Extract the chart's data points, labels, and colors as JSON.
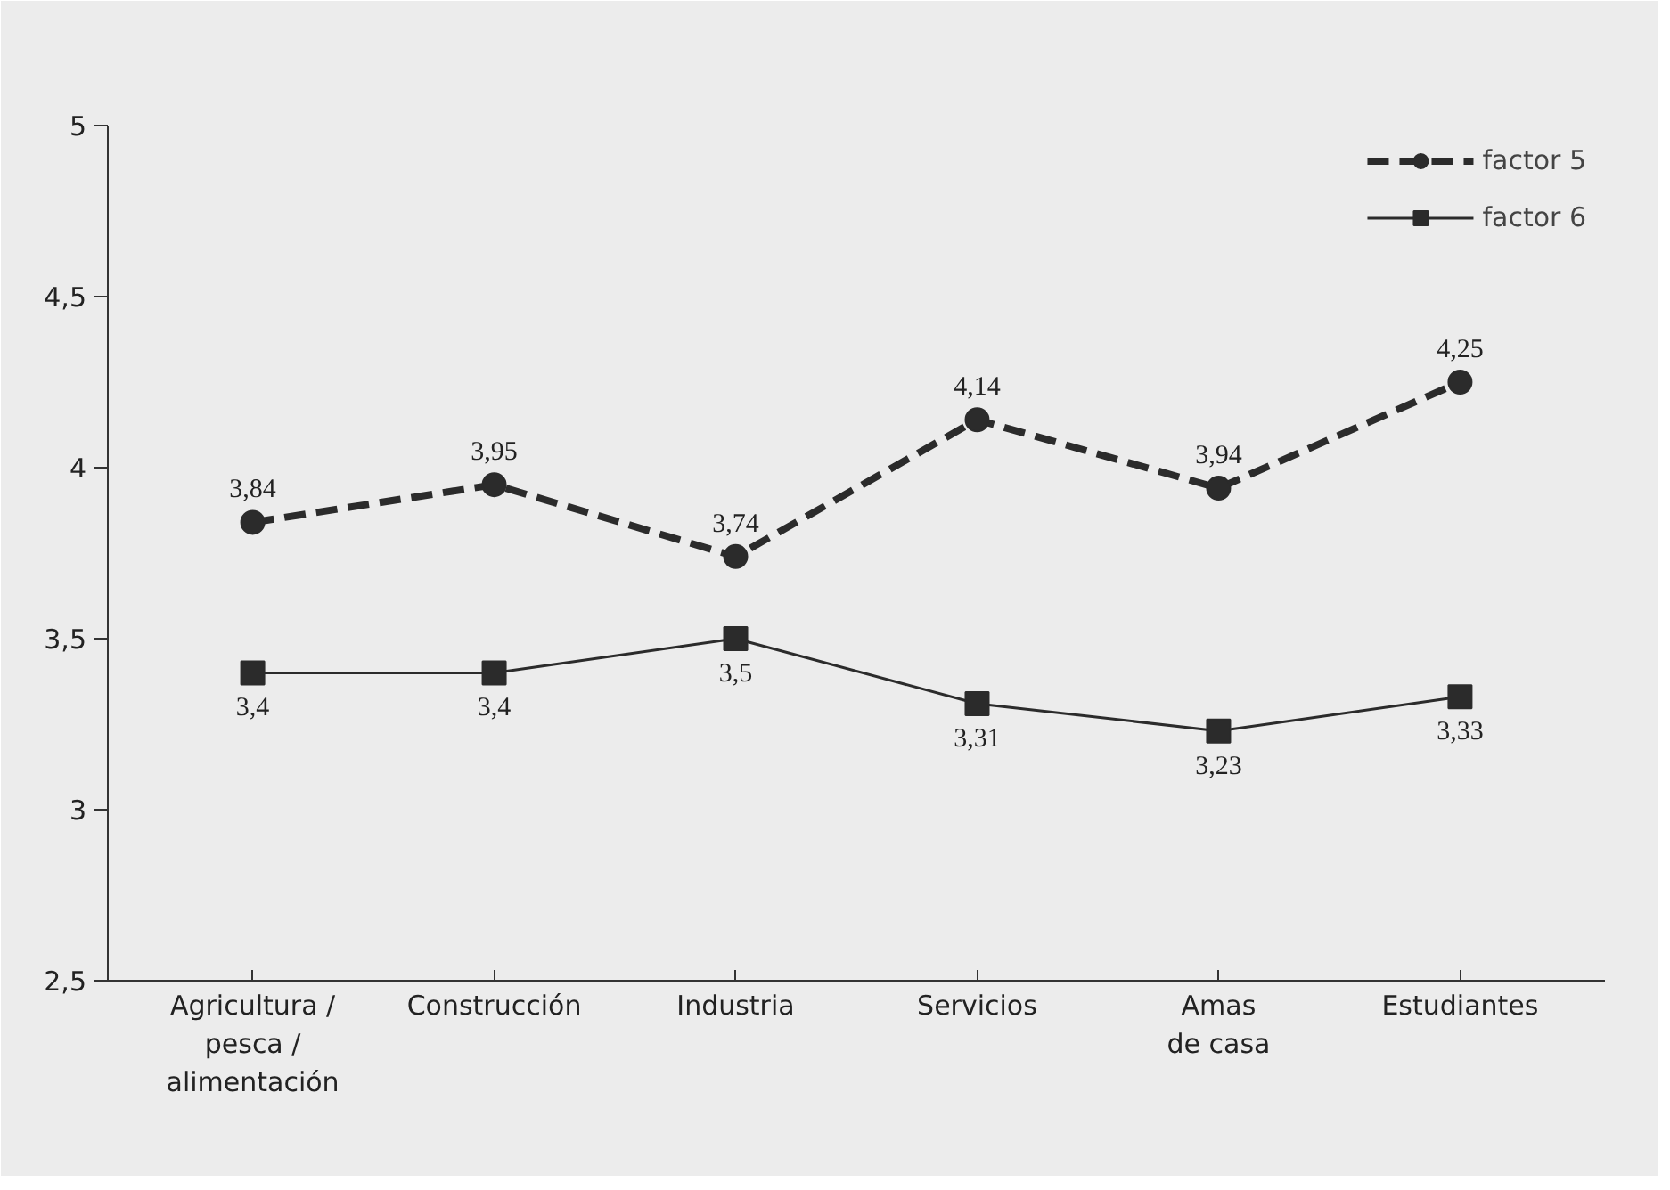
{
  "chart_data": {
    "type": "line",
    "categories": [
      "Agricultura /\npesca /\nalimentación",
      "Construcción",
      "Industria",
      "Servicios",
      "Amas\nde casa",
      "Estudiantes"
    ],
    "series": [
      {
        "name": "factor 5",
        "color": "#2b2b2b",
        "values": [
          3.84,
          3.95,
          3.74,
          4.14,
          3.94,
          4.25
        ],
        "value_labels": [
          "3,84",
          "3,95",
          "3,74",
          "4,14",
          "3,94",
          "4,25"
        ],
        "marker": "circle",
        "line_style": "dashed"
      },
      {
        "name": "factor 6",
        "color": "#2b2b2b",
        "values": [
          3.4,
          3.4,
          3.5,
          3.31,
          3.23,
          3.33
        ],
        "value_labels": [
          "3,4",
          "3,4",
          "3,5",
          "3,31",
          "3,23",
          "3,33"
        ],
        "marker": "square",
        "line_style": "solid"
      }
    ],
    "ylim": [
      2.5,
      5
    ],
    "yticks": [
      {
        "value": 2.5,
        "label": "2,5"
      },
      3,
      {
        "value": 3.5,
        "label": "3,5"
      },
      4,
      {
        "value": 4.5,
        "label": "4,5"
      },
      5
    ],
    "grid": false,
    "legend": "top right"
  }
}
